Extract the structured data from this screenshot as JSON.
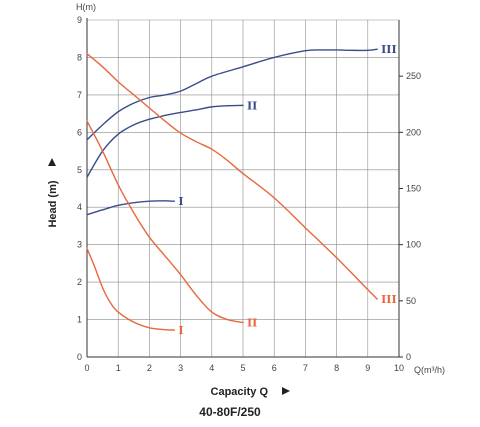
{
  "chart_data": {
    "type": "line",
    "title": "40-80F/250",
    "xlabel": "Capacity Q",
    "ylabel": "Head (m)",
    "x_unit": "Q(m³/h)",
    "y_unit": "H(m)",
    "xlim": [
      0,
      10
    ],
    "ylim": [
      0,
      9
    ],
    "x_ticks": [
      "0",
      "1",
      "2",
      "3",
      "4",
      "5",
      "6",
      "7",
      "8",
      "9",
      "10"
    ],
    "y_ticks": [
      "0",
      "1",
      "2",
      "3",
      "4",
      "5",
      "6",
      "7",
      "8",
      "9"
    ],
    "y2_lim": [
      0,
      300
    ],
    "y2_ticks": [
      "0",
      "50",
      "100",
      "150",
      "200",
      "250"
    ],
    "grid": true,
    "colors": {
      "head": "#3b4c8c",
      "power": "#e8673c"
    },
    "series": [
      {
        "name": "I",
        "group": "head",
        "x": [
          0,
          0.5,
          1,
          1.5,
          2,
          2.5,
          2.8
        ],
        "y": [
          3.8,
          3.93,
          4.05,
          4.12,
          4.16,
          4.17,
          4.16
        ]
      },
      {
        "name": "II",
        "group": "head",
        "x": [
          0,
          0.5,
          1,
          1.5,
          2,
          2.5,
          3,
          3.5,
          4,
          4.5,
          5
        ],
        "y": [
          4.8,
          5.5,
          5.95,
          6.2,
          6.35,
          6.45,
          6.53,
          6.6,
          6.68,
          6.71,
          6.72
        ]
      },
      {
        "name": "III",
        "group": "head",
        "x": [
          0,
          0.5,
          1,
          1.5,
          2,
          2.5,
          3,
          3.5,
          4,
          5,
          6,
          7,
          7.5,
          8,
          8.5,
          9,
          9.3
        ],
        "y": [
          5.8,
          6.2,
          6.55,
          6.78,
          6.93,
          7.0,
          7.1,
          7.3,
          7.5,
          7.75,
          8.0,
          8.18,
          8.2,
          8.2,
          8.19,
          8.19,
          8.22
        ]
      },
      {
        "name": "I",
        "group": "power",
        "x": [
          0,
          0.25,
          0.5,
          0.75,
          1,
          1.5,
          2,
          2.5,
          2.8
        ],
        "y": [
          2.9,
          2.4,
          1.85,
          1.45,
          1.2,
          0.93,
          0.78,
          0.73,
          0.72
        ]
      },
      {
        "name": "II",
        "group": "power",
        "x": [
          0,
          0.5,
          1,
          1.5,
          2,
          2.5,
          3,
          3.5,
          4,
          4.5,
          5
        ],
        "y": [
          6.3,
          5.5,
          4.6,
          3.85,
          3.2,
          2.7,
          2.2,
          1.65,
          1.2,
          1.0,
          0.92
        ]
      },
      {
        "name": "III",
        "group": "power",
        "x": [
          0,
          0.5,
          1,
          1.5,
          2,
          2.5,
          3,
          3.5,
          4,
          4.5,
          5,
          6,
          7,
          8,
          9,
          9.3
        ],
        "y": [
          8.1,
          7.75,
          7.35,
          7.0,
          6.65,
          6.3,
          5.98,
          5.75,
          5.55,
          5.25,
          4.9,
          4.25,
          3.45,
          2.65,
          1.8,
          1.55
        ]
      }
    ]
  }
}
